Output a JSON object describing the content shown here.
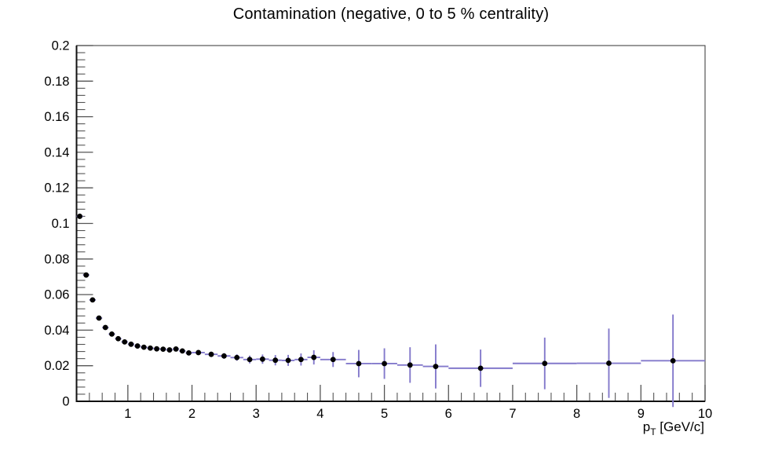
{
  "title": "Contamination (negative, 0 to 5 % centrality)",
  "plot": {
    "background": "#ffffff",
    "frame_color": "#333333",
    "axis_color": "#111111",
    "tick_color": "#555555",
    "label_color": "#000000"
  },
  "chart_data": {
    "type": "scatter",
    "title": "Contamination (negative, 0 to 5 % centrality)",
    "xlabel": "p_T [GeV/c]",
    "xlabel_parts": {
      "pre": "p",
      "sub": "T",
      "post": " [GeV/c]"
    },
    "ylabel": "",
    "xlim": [
      0.2,
      10
    ],
    "ylim": [
      0,
      0.2
    ],
    "grid": false,
    "legend": "none",
    "x_major_ticks": [
      1,
      2,
      3,
      4,
      5,
      6,
      7,
      8,
      9,
      10
    ],
    "x_major_labels": [
      "1",
      "2",
      "3",
      "4",
      "5",
      "6",
      "7",
      "8",
      "9",
      "10"
    ],
    "x_minor_step": 0.2,
    "y_major_ticks": [
      0,
      0.02,
      0.04,
      0.06,
      0.08,
      0.1,
      0.12,
      0.14,
      0.16,
      0.18,
      0.2
    ],
    "y_major_labels": [
      "0",
      "0.02",
      "0.04",
      "0.06",
      "0.08",
      "0.1",
      "0.12",
      "0.14",
      "0.16",
      "0.18",
      "0.2"
    ],
    "y_minor_step": 0.004,
    "series": [
      {
        "name": "contamination",
        "marker": "filled-circle",
        "marker_color": "#000000",
        "marker_radius": 3.4,
        "error_color": "#8379cb",
        "error_line_width": 1.9,
        "points_format": [
          "x",
          "y",
          "y_error",
          "x_half_bin_width"
        ],
        "points": [
          [
            0.25,
            0.104,
            0.0004,
            0.05
          ],
          [
            0.35,
            0.071,
            0.0004,
            0.05
          ],
          [
            0.45,
            0.057,
            0.0004,
            0.05
          ],
          [
            0.55,
            0.0468,
            0.0004,
            0.05
          ],
          [
            0.65,
            0.0415,
            0.0004,
            0.05
          ],
          [
            0.75,
            0.0378,
            0.0005,
            0.05
          ],
          [
            0.85,
            0.0352,
            0.0005,
            0.05
          ],
          [
            0.95,
            0.0334,
            0.0006,
            0.05
          ],
          [
            1.05,
            0.0321,
            0.0007,
            0.05
          ],
          [
            1.15,
            0.0311,
            0.0007,
            0.05
          ],
          [
            1.25,
            0.0304,
            0.0008,
            0.05
          ],
          [
            1.35,
            0.0299,
            0.0009,
            0.05
          ],
          [
            1.45,
            0.0295,
            0.001,
            0.05
          ],
          [
            1.55,
            0.0293,
            0.001,
            0.05
          ],
          [
            1.65,
            0.0289,
            0.0011,
            0.05
          ],
          [
            1.75,
            0.0294,
            0.0012,
            0.05
          ],
          [
            1.85,
            0.0283,
            0.0013,
            0.05
          ],
          [
            1.95,
            0.0272,
            0.0014,
            0.05
          ],
          [
            2.1,
            0.0274,
            0.0013,
            0.1
          ],
          [
            2.3,
            0.0264,
            0.0015,
            0.1
          ],
          [
            2.5,
            0.0255,
            0.0016,
            0.1
          ],
          [
            2.7,
            0.0246,
            0.0018,
            0.1
          ],
          [
            2.9,
            0.0235,
            0.0022,
            0.1
          ],
          [
            3.1,
            0.0237,
            0.0026,
            0.1
          ],
          [
            3.3,
            0.0231,
            0.0029,
            0.1
          ],
          [
            3.5,
            0.023,
            0.0031,
            0.1
          ],
          [
            3.7,
            0.0235,
            0.0034,
            0.1
          ],
          [
            3.9,
            0.0247,
            0.004,
            0.1
          ],
          [
            4.2,
            0.0235,
            0.0042,
            0.2
          ],
          [
            4.6,
            0.0212,
            0.0077,
            0.2
          ],
          [
            5.0,
            0.0212,
            0.0086,
            0.2
          ],
          [
            5.4,
            0.0204,
            0.01,
            0.2
          ],
          [
            5.8,
            0.0196,
            0.0124,
            0.2
          ],
          [
            6.5,
            0.0186,
            0.0105,
            0.5
          ],
          [
            7.5,
            0.0213,
            0.0145,
            0.5
          ],
          [
            8.5,
            0.0214,
            0.0195,
            0.5
          ],
          [
            9.5,
            0.0228,
            0.026,
            0.5
          ]
        ]
      }
    ]
  }
}
